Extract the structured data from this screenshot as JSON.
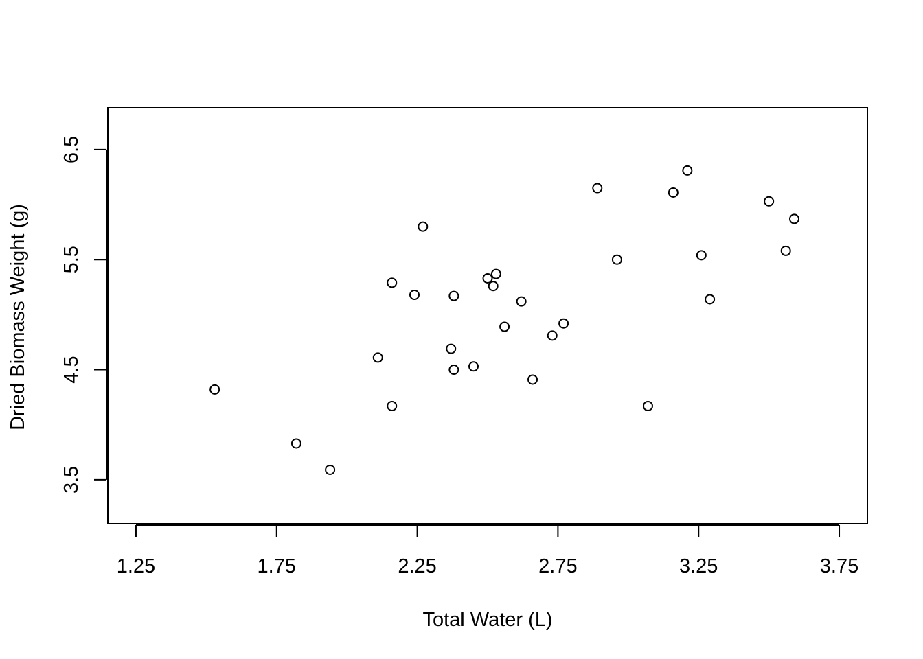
{
  "chart_data": {
    "type": "scatter",
    "title": "",
    "xlabel": "Total Water (L)",
    "ylabel": "Dried Biomass Weight (g)",
    "xlim": [
      1.15,
      3.85
    ],
    "ylim": [
      3.1,
      6.88
    ],
    "x_ticks": [
      1.25,
      1.75,
      2.25,
      2.75,
      3.25,
      3.75
    ],
    "y_ticks": [
      3.5,
      4.5,
      5.5,
      6.5
    ],
    "x_tick_labels": [
      "1.25",
      "1.75",
      "2.25",
      "2.75",
      "3.25",
      "3.75"
    ],
    "y_tick_labels": [
      "3.5",
      "4.5",
      "5.5",
      "6.5"
    ],
    "grid": false,
    "legend": false,
    "marker": "open-circle",
    "points": [
      {
        "x": 1.53,
        "y": 4.32
      },
      {
        "x": 1.82,
        "y": 3.83
      },
      {
        "x": 1.94,
        "y": 3.59
      },
      {
        "x": 2.11,
        "y": 4.61
      },
      {
        "x": 2.16,
        "y": 5.29
      },
      {
        "x": 2.16,
        "y": 4.17
      },
      {
        "x": 2.24,
        "y": 5.18
      },
      {
        "x": 2.27,
        "y": 5.8
      },
      {
        "x": 2.37,
        "y": 4.69
      },
      {
        "x": 2.38,
        "y": 4.5
      },
      {
        "x": 2.38,
        "y": 5.17
      },
      {
        "x": 2.45,
        "y": 4.53
      },
      {
        "x": 2.5,
        "y": 5.33
      },
      {
        "x": 2.52,
        "y": 5.26
      },
      {
        "x": 2.53,
        "y": 5.37
      },
      {
        "x": 2.56,
        "y": 4.89
      },
      {
        "x": 2.62,
        "y": 5.12
      },
      {
        "x": 2.66,
        "y": 4.41
      },
      {
        "x": 2.73,
        "y": 4.81
      },
      {
        "x": 2.77,
        "y": 4.92
      },
      {
        "x": 2.89,
        "y": 6.15
      },
      {
        "x": 2.96,
        "y": 5.5
      },
      {
        "x": 3.07,
        "y": 4.17
      },
      {
        "x": 3.16,
        "y": 6.11
      },
      {
        "x": 3.21,
        "y": 6.31
      },
      {
        "x": 3.26,
        "y": 5.54
      },
      {
        "x": 3.29,
        "y": 5.14
      },
      {
        "x": 3.5,
        "y": 6.03
      },
      {
        "x": 3.56,
        "y": 5.58
      },
      {
        "x": 3.59,
        "y": 5.87
      }
    ]
  }
}
